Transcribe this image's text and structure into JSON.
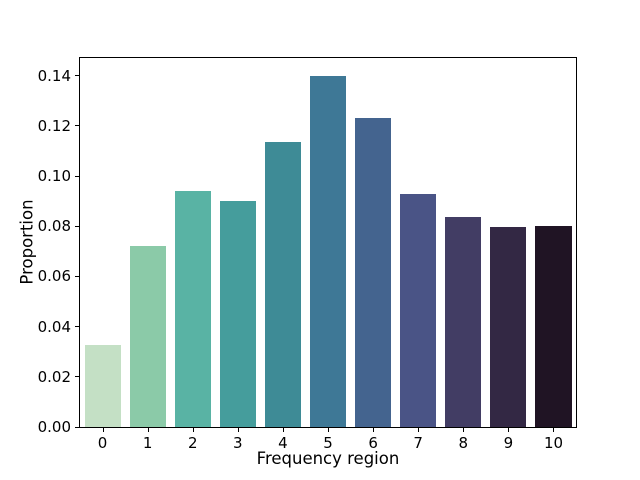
{
  "figure": {
    "background_color": "#ffffff",
    "axis_color": "#000000"
  },
  "chart_data": {
    "type": "bar",
    "title": "",
    "xlabel": "Frequency region",
    "ylabel": "Proportion",
    "categories": [
      "0",
      "1",
      "2",
      "3",
      "4",
      "5",
      "6",
      "7",
      "8",
      "9",
      "10"
    ],
    "values": [
      0.0325,
      0.072,
      0.094,
      0.09,
      0.1135,
      0.14,
      0.123,
      0.093,
      0.0835,
      0.0795,
      0.08
    ],
    "bar_colors": [
      "#c4e0c5",
      "#8bcaa8",
      "#59b3a4",
      "#459d9c",
      "#3e8b96",
      "#3e7896",
      "#44648f",
      "#4a5486",
      "#423d64",
      "#332844",
      "#201424"
    ],
    "bar_width_fraction": 0.8,
    "ylim": [
      0,
      0.147
    ],
    "ytick_values": [
      0.0,
      0.02,
      0.04,
      0.06,
      0.08,
      0.1,
      0.12,
      0.14
    ],
    "ytick_labels": [
      "0.00",
      "0.02",
      "0.04",
      "0.06",
      "0.08",
      "0.10",
      "0.12",
      "0.14"
    ],
    "grid": false,
    "legend": null
  }
}
